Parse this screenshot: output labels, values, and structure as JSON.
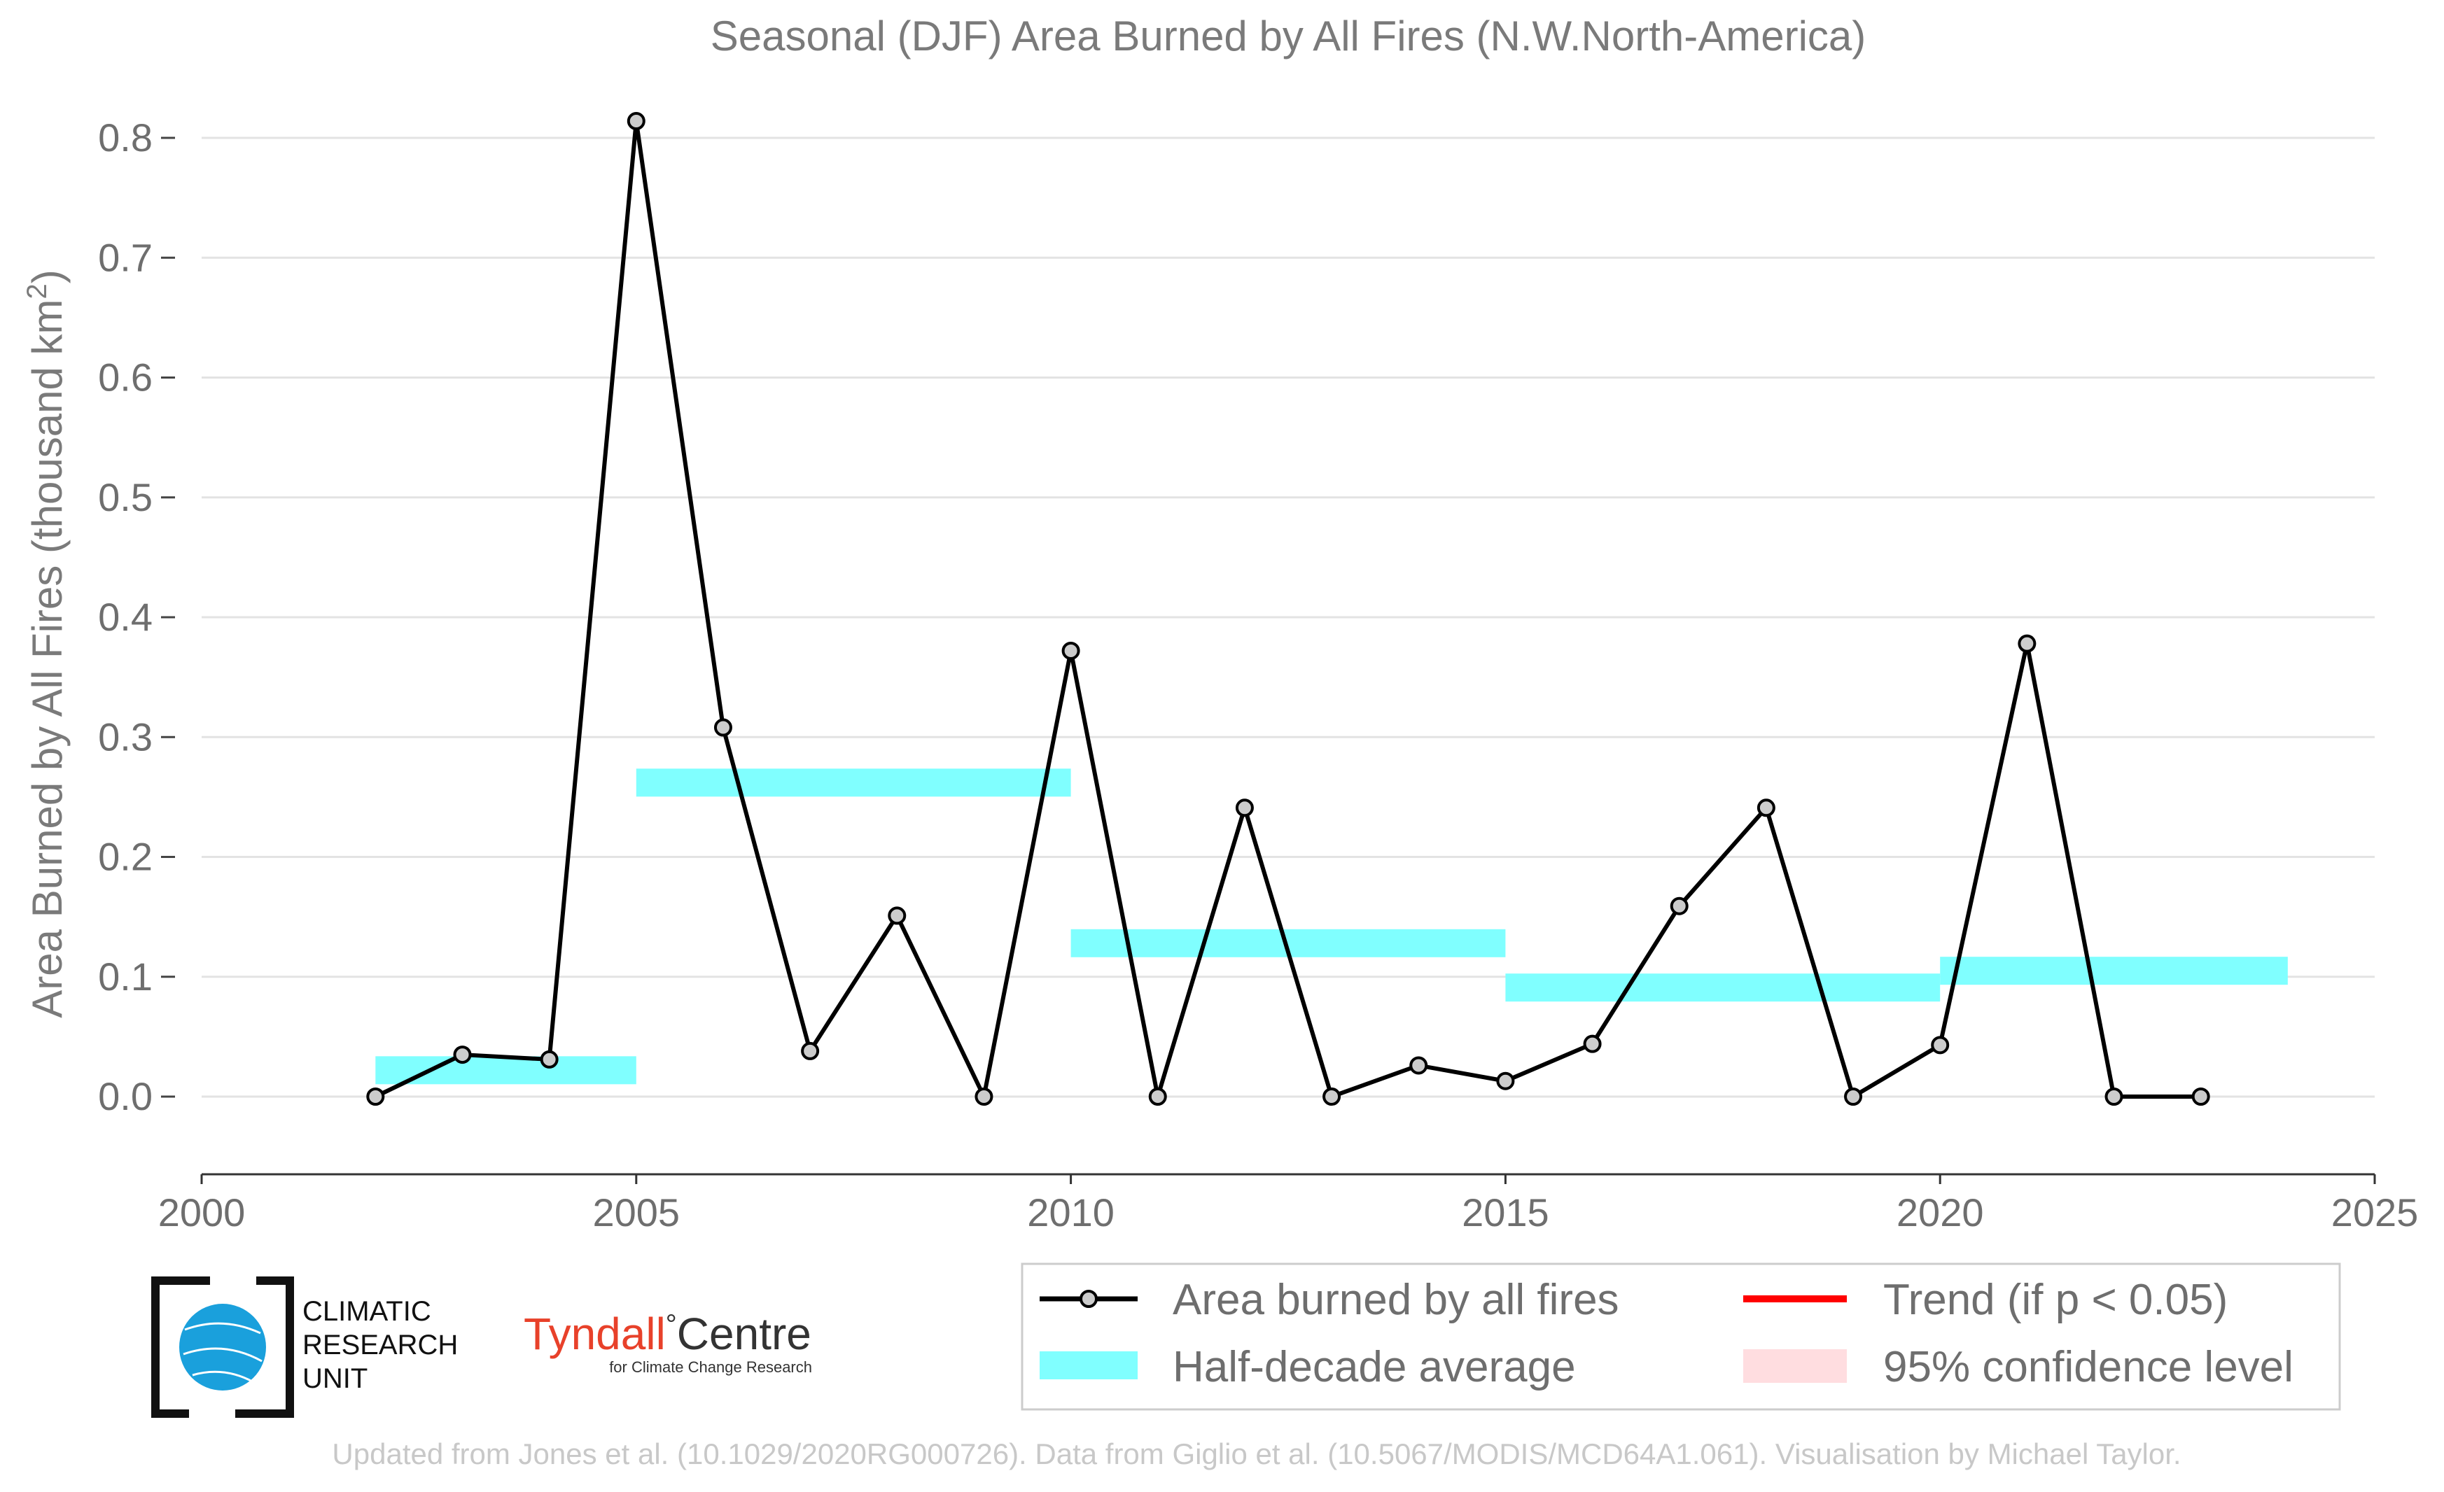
{
  "chart_data": {
    "type": "line",
    "title": "Seasonal (DJF) Area Burned by All Fires (N.W.North-America)",
    "ylabel": "Area Burned by All Fires (thousand km²)",
    "ylabel_main": "Area Burned by All Fires (thousand km",
    "ylabel_sup": "2",
    "ylabel_close": ")",
    "xlabel": "",
    "xlim": [
      2000,
      2025
    ],
    "ylim": [
      -0.065,
      0.82
    ],
    "x_ticks": [
      2000,
      2005,
      2010,
      2015,
      2020,
      2025
    ],
    "x_tick_labels": [
      "2000",
      "2005",
      "2010",
      "2015",
      "2020",
      "2025"
    ],
    "y_ticks": [
      0.0,
      0.1,
      0.2,
      0.3,
      0.4,
      0.5,
      0.6,
      0.7,
      0.8
    ],
    "y_tick_labels": [
      "0.0",
      "0.1",
      "0.2",
      "0.3",
      "0.4",
      "0.5",
      "0.6",
      "0.7",
      "0.8"
    ],
    "grid": "horizontal",
    "legend_position": "bottom-right",
    "series": [
      {
        "name": "Area burned by all fires",
        "type": "line",
        "color": "#000000",
        "marker_color": "#cccccc",
        "x": [
          2002,
          2003,
          2004,
          2005,
          2006,
          2007,
          2008,
          2009,
          2010,
          2011,
          2012,
          2013,
          2014,
          2015,
          2016,
          2017,
          2018,
          2019,
          2020,
          2021,
          2022,
          2023
        ],
        "y": [
          0.0,
          0.035,
          0.031,
          0.814,
          0.308,
          0.038,
          0.151,
          0.0,
          0.372,
          0.0,
          0.241,
          0.0,
          0.026,
          0.013,
          0.044,
          0.159,
          0.241,
          0.0,
          0.043,
          0.378,
          0.0,
          0.0
        ]
      },
      {
        "name": "Half-decade average",
        "type": "step",
        "color": "#80ffff",
        "segments": [
          {
            "x_start": 2002,
            "x_end": 2005,
            "value": 0.022
          },
          {
            "x_start": 2005,
            "x_end": 2010,
            "value": 0.262
          },
          {
            "x_start": 2010,
            "x_end": 2015,
            "value": 0.128
          },
          {
            "x_start": 2015,
            "x_end": 2020,
            "value": 0.091
          },
          {
            "x_start": 2020,
            "x_end": 2024,
            "value": 0.105
          }
        ]
      }
    ],
    "legend": [
      {
        "label": "Area burned by all fires",
        "symbol": "line-marker",
        "color": "#000000"
      },
      {
        "label": "Trend (if p < 0.05)",
        "symbol": "line",
        "color": "#ff0000"
      },
      {
        "label": "Half-decade average",
        "symbol": "band",
        "color": "#80ffff"
      },
      {
        "label": "95% confidence level",
        "symbol": "band",
        "color": "#ffdde0"
      }
    ]
  },
  "logos": {
    "cru_line1": "CLIMATIC",
    "cru_line2": "RESEARCH",
    "cru_line3": "UNIT",
    "tyndall_name": "Tyndall",
    "tyndall_degree": "°",
    "tyndall_centre": "Centre",
    "tyndall_sub": "for Climate Change Research"
  },
  "credit": "Updated from Jones et al. (10.1029/2020RG000726). Data from Giglio et al. (10.5067/MODIS/MCD64A1.061). Visualisation by Michael Taylor."
}
